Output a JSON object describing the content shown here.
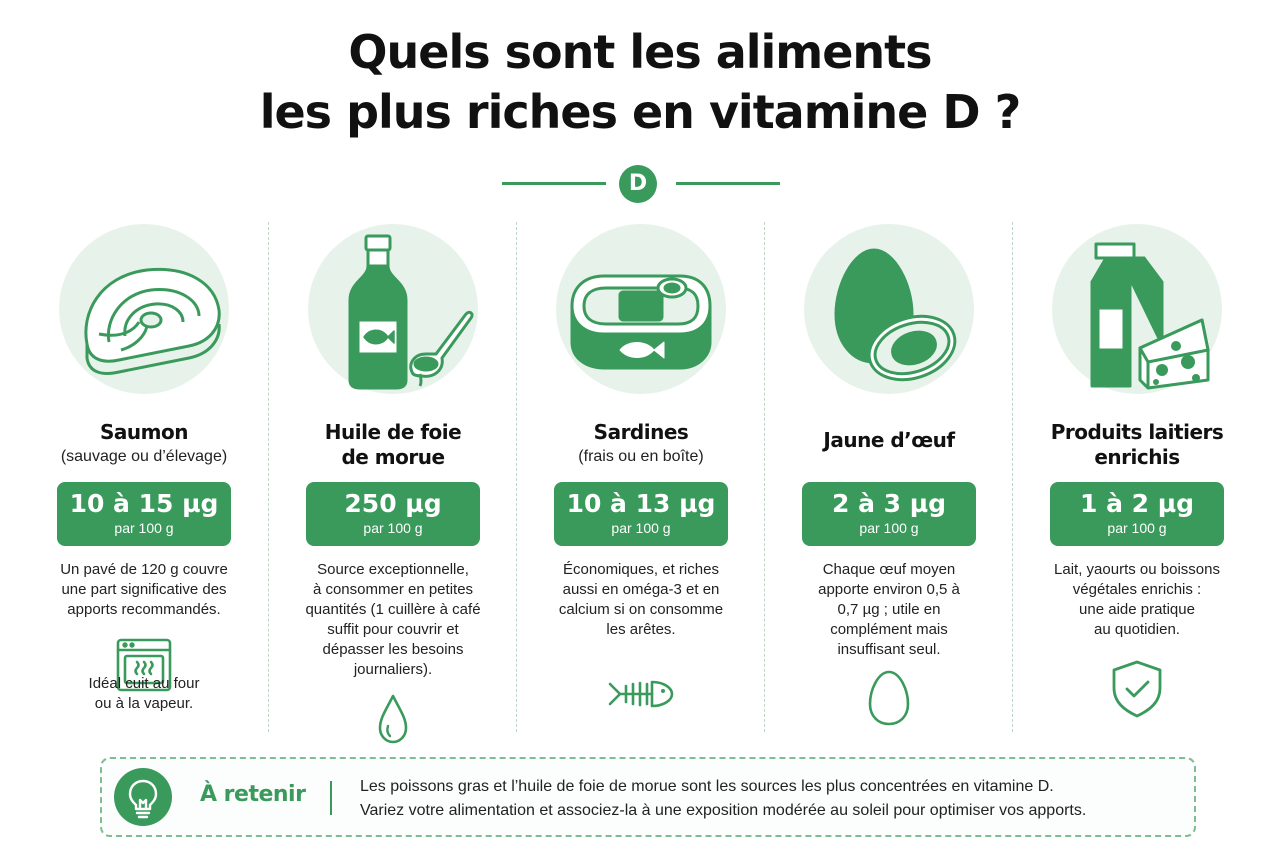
{
  "title": {
    "line1": "Quels sont les aliments",
    "line2": "les plus riches en vitamine D ?"
  },
  "divider": {
    "badge": "D"
  },
  "colors": {
    "accent": "#3a9a5c",
    "light": "#e7f3ea"
  },
  "foods": [
    {
      "icon": "salmon-steak-icon",
      "name_lines": [
        "Saumon"
      ],
      "subtitle": "(sauvage ou d’élevage)",
      "amount": "10 à 15 µg",
      "per": "par 100 g",
      "description_lines": [
        "Un pavé de 120 g couvre",
        "une part significative des",
        "apports recommandés."
      ],
      "small_icon": "oven-icon",
      "note_lines": [
        "Idéal cuit au four",
        "ou à la vapeur."
      ]
    },
    {
      "icon": "cod-liver-oil-bottle-icon",
      "name_lines": [
        "Huile de foie",
        "de morue"
      ],
      "subtitle": "",
      "amount": "250 µg",
      "per": "par 100 g",
      "description_lines": [
        "Source exceptionnelle,",
        "à consommer en petites",
        "quantités (1 cuillère à café",
        "suffit pour couvrir et",
        "dépasser les besoins",
        "journaliers)."
      ],
      "small_icon": "oil-drop-icon",
      "note_lines": []
    },
    {
      "icon": "sardine-can-icon",
      "name_lines": [
        "Sardines"
      ],
      "subtitle": "(frais ou en boîte)",
      "amount": "10 à 13 µg",
      "per": "par 100 g",
      "description_lines": [
        "Économiques, et riches",
        "aussi en oméga-3 et en",
        "calcium si on consomme",
        "les arêtes."
      ],
      "small_icon": "fish-bone-icon",
      "note_lines": []
    },
    {
      "icon": "egg-icon",
      "name_lines": [
        "Jaune d’œuf"
      ],
      "subtitle": "",
      "amount": "2 à 3 µg",
      "per": "par 100 g",
      "description_lines": [
        "Chaque œuf moyen",
        "apporte environ 0,5 à",
        "0,7 µg ; utile en",
        "complément mais",
        "insuffisant seul."
      ],
      "small_icon": "egg-outline-icon",
      "note_lines": []
    },
    {
      "icon": "milk-carton-cheese-icon",
      "name_lines": [
        "Produits laitiers",
        "enrichis"
      ],
      "subtitle": "",
      "amount": "1 à 2 µg",
      "per": "par 100 g",
      "description_lines": [
        "Lait, yaourts ou boissons",
        "végétales enrichis :",
        "une aide pratique",
        "au quotidien."
      ],
      "small_icon": "shield-check-icon",
      "note_lines": []
    }
  ],
  "retenir": {
    "icon": "lightbulb-icon",
    "label": "À retenir",
    "line1": "Les poissons gras et l’huile de foie de morue sont les sources les plus concentrées en vitamine D.",
    "line2": "Variez votre alimentation et associez-la à une exposition modérée au soleil pour optimiser vos apports."
  }
}
